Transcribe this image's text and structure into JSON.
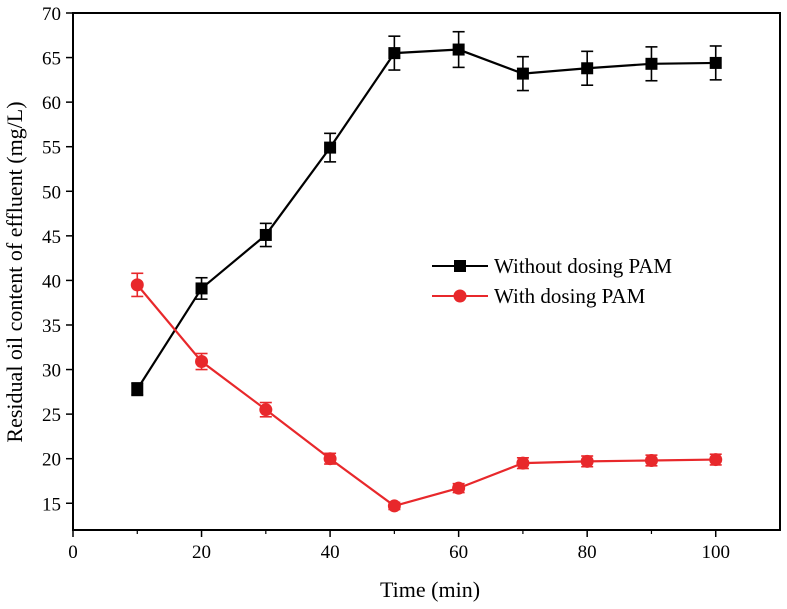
{
  "chart_data": {
    "type": "line",
    "title": "",
    "xlabel": "Time (min)",
    "ylabel": "Residual oil content of effluent (mg/L)",
    "xlim": [
      0,
      110
    ],
    "ylim": [
      12,
      70
    ],
    "x_ticks": [
      0,
      20,
      40,
      60,
      80,
      100
    ],
    "y_ticks": [
      15,
      20,
      25,
      30,
      35,
      40,
      45,
      50,
      55,
      60,
      65,
      70
    ],
    "legend_position": "center-right",
    "grid": false,
    "series": [
      {
        "name": "Without dosing PAM",
        "color": "#000000",
        "marker": "square",
        "x": [
          10,
          20,
          30,
          40,
          50,
          60,
          70,
          80,
          90,
          100
        ],
        "y": [
          27.8,
          39.1,
          45.1,
          54.9,
          65.5,
          65.9,
          63.2,
          63.8,
          64.3,
          64.4
        ],
        "error": [
          0.7,
          1.2,
          1.3,
          1.6,
          1.9,
          2.0,
          1.9,
          1.9,
          1.9,
          1.9
        ]
      },
      {
        "name": "With dosing PAM",
        "color": "#e8282b",
        "marker": "circle",
        "x": [
          10,
          20,
          30,
          40,
          50,
          60,
          70,
          80,
          90,
          100
        ],
        "y": [
          39.5,
          30.9,
          25.5,
          20.0,
          14.7,
          16.7,
          19.5,
          19.7,
          19.8,
          19.9
        ],
        "error": [
          1.3,
          0.9,
          0.8,
          0.6,
          0.4,
          0.5,
          0.6,
          0.6,
          0.6,
          0.6
        ]
      }
    ]
  }
}
